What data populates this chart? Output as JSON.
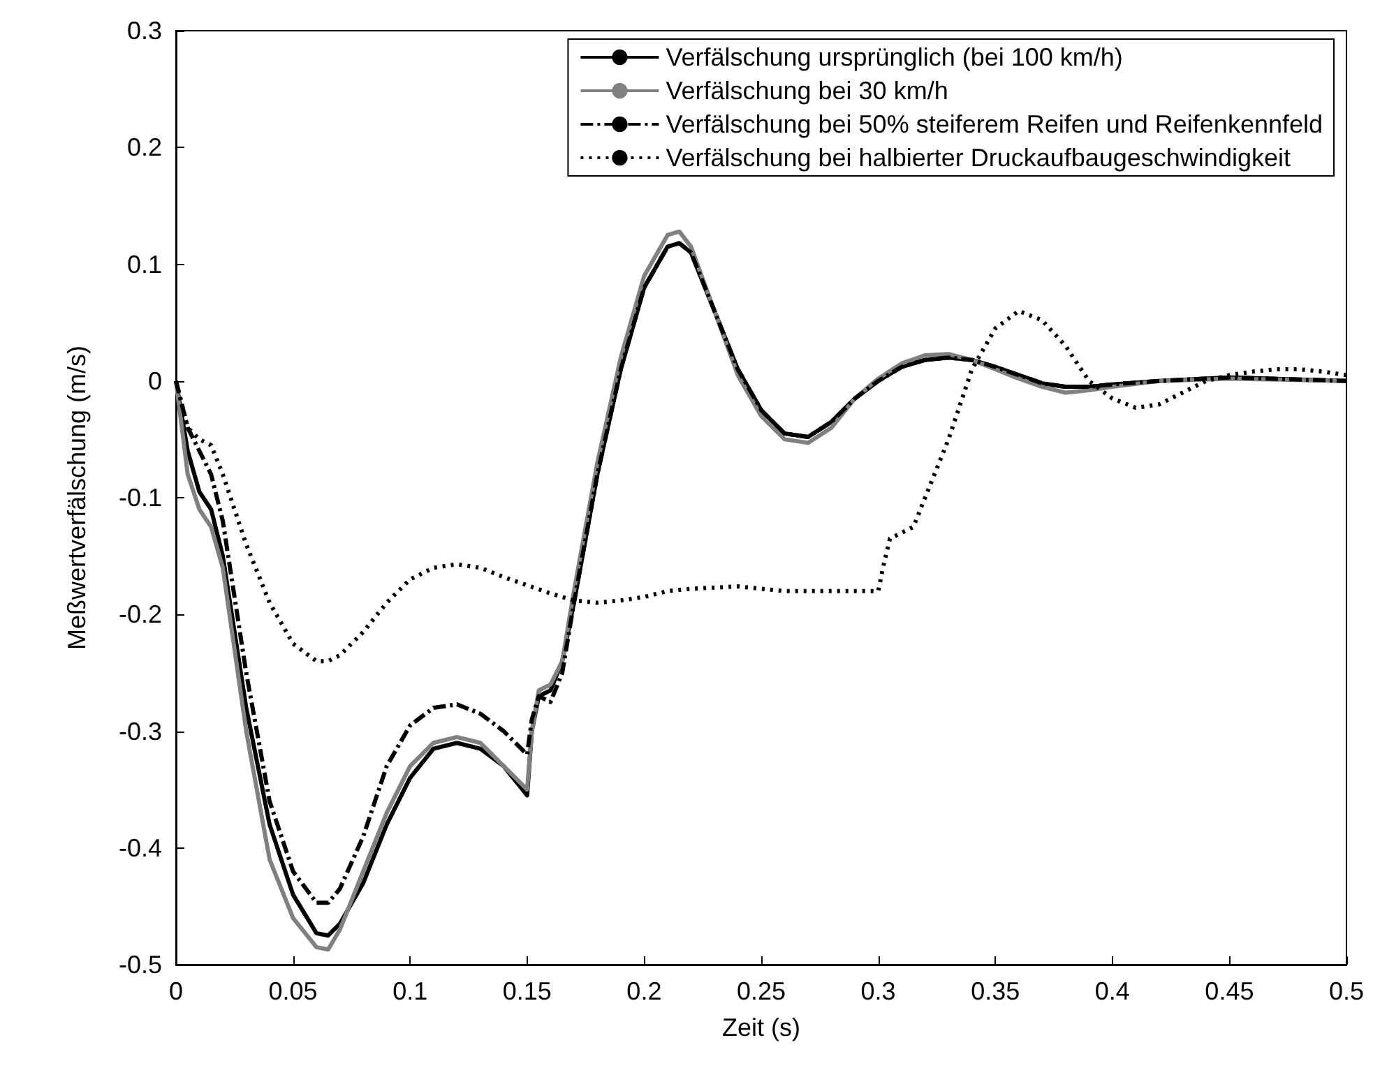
{
  "chart_data": {
    "type": "line",
    "xlabel": "Zeit (s)",
    "ylabel": "Meßwertverfälschung (m/s)",
    "xlim": [
      0,
      0.5
    ],
    "xticks": [
      0,
      0.05,
      0.1,
      0.15,
      0.2,
      0.25,
      0.3,
      0.35,
      0.4,
      0.45,
      0.5
    ],
    "ylim": [
      -0.5,
      0.3
    ],
    "yticks": [
      -0.5,
      -0.4,
      -0.3,
      -0.2,
      -0.1,
      0,
      0.1,
      0.2,
      0.3
    ],
    "grid": false,
    "legend": "top right",
    "marker": "none",
    "series": [
      {
        "name": "Verfälschung ursprünglich (bei 100 km/h)",
        "color": "#000000",
        "line_style": "solid",
        "x": [
          0,
          0.005,
          0.01,
          0.015,
          0.02,
          0.03,
          0.04,
          0.05,
          0.06,
          0.065,
          0.07,
          0.08,
          0.09,
          0.1,
          0.11,
          0.12,
          0.13,
          0.14,
          0.15,
          0.152,
          0.155,
          0.16,
          0.165,
          0.17,
          0.18,
          0.19,
          0.2,
          0.21,
          0.215,
          0.22,
          0.23,
          0.24,
          0.25,
          0.26,
          0.27,
          0.28,
          0.29,
          0.3,
          0.31,
          0.32,
          0.33,
          0.34,
          0.35,
          0.36,
          0.37,
          0.38,
          0.39,
          0.4,
          0.42,
          0.45,
          0.5
        ],
        "values": [
          0,
          -0.06,
          -0.095,
          -0.11,
          -0.15,
          -0.28,
          -0.38,
          -0.44,
          -0.473,
          -0.475,
          -0.465,
          -0.43,
          -0.38,
          -0.34,
          -0.315,
          -0.31,
          -0.315,
          -0.33,
          -0.355,
          -0.3,
          -0.27,
          -0.265,
          -0.24,
          -0.19,
          -0.08,
          0.01,
          0.08,
          0.115,
          0.118,
          0.11,
          0.06,
          0.01,
          -0.025,
          -0.045,
          -0.048,
          -0.035,
          -0.015,
          0,
          0.012,
          0.018,
          0.02,
          0.018,
          0.012,
          0.005,
          -0.002,
          -0.005,
          -0.005,
          -0.003,
          0,
          0.003,
          0
        ]
      },
      {
        "name": "Verfälschung bei 30 km/h",
        "color": "#808080",
        "line_style": "solid",
        "x": [
          0,
          0.005,
          0.01,
          0.015,
          0.02,
          0.03,
          0.04,
          0.05,
          0.06,
          0.065,
          0.07,
          0.08,
          0.09,
          0.1,
          0.11,
          0.12,
          0.13,
          0.14,
          0.15,
          0.152,
          0.155,
          0.16,
          0.165,
          0.17,
          0.18,
          0.19,
          0.2,
          0.21,
          0.215,
          0.22,
          0.23,
          0.24,
          0.25,
          0.26,
          0.27,
          0.28,
          0.29,
          0.3,
          0.31,
          0.32,
          0.33,
          0.34,
          0.35,
          0.36,
          0.37,
          0.38,
          0.39,
          0.4,
          0.42,
          0.45,
          0.5
        ],
        "values": [
          0,
          -0.08,
          -0.11,
          -0.125,
          -0.16,
          -0.3,
          -0.41,
          -0.46,
          -0.485,
          -0.487,
          -0.47,
          -0.42,
          -0.37,
          -0.33,
          -0.31,
          -0.305,
          -0.31,
          -0.33,
          -0.35,
          -0.3,
          -0.265,
          -0.26,
          -0.24,
          -0.18,
          -0.07,
          0.02,
          0.09,
          0.125,
          0.128,
          0.115,
          0.06,
          0.005,
          -0.03,
          -0.05,
          -0.053,
          -0.04,
          -0.015,
          0.002,
          0.015,
          0.022,
          0.023,
          0.018,
          0.01,
          0.002,
          -0.005,
          -0.01,
          -0.008,
          -0.005,
          0,
          0.002,
          0
        ]
      },
      {
        "name": "Verfälschung bei 50% steiferem Reifen und Reifenkennfeld",
        "color": "#000000",
        "line_style": "dashdot",
        "x": [
          0,
          0.005,
          0.01,
          0.015,
          0.02,
          0.03,
          0.04,
          0.05,
          0.06,
          0.065,
          0.07,
          0.08,
          0.09,
          0.1,
          0.11,
          0.12,
          0.13,
          0.14,
          0.15,
          0.152,
          0.155,
          0.16,
          0.165,
          0.17,
          0.18,
          0.19,
          0.2,
          0.21,
          0.215,
          0.22,
          0.23,
          0.24,
          0.25,
          0.26,
          0.27,
          0.28,
          0.29,
          0.3,
          0.31,
          0.32,
          0.33,
          0.34,
          0.35,
          0.36,
          0.37,
          0.38,
          0.39,
          0.4,
          0.42,
          0.45,
          0.5
        ],
        "values": [
          0,
          -0.04,
          -0.06,
          -0.08,
          -0.12,
          -0.25,
          -0.36,
          -0.42,
          -0.447,
          -0.447,
          -0.435,
          -0.39,
          -0.33,
          -0.295,
          -0.28,
          -0.277,
          -0.285,
          -0.3,
          -0.32,
          -0.29,
          -0.27,
          -0.275,
          -0.25,
          -0.19,
          -0.08,
          0.01,
          0.08,
          0.115,
          0.118,
          0.11,
          0.06,
          0.01,
          -0.025,
          -0.045,
          -0.048,
          -0.035,
          -0.015,
          0,
          0.012,
          0.018,
          0.02,
          0.018,
          0.012,
          0.005,
          -0.002,
          -0.005,
          -0.005,
          -0.003,
          0,
          0.003,
          0
        ]
      },
      {
        "name": "Verfälschung bei halbierter Druckaufbaugeschwindigkeit",
        "color": "#000000",
        "line_style": "dotted",
        "x": [
          0,
          0.005,
          0.01,
          0.015,
          0.02,
          0.03,
          0.04,
          0.05,
          0.06,
          0.065,
          0.07,
          0.08,
          0.09,
          0.1,
          0.11,
          0.12,
          0.13,
          0.14,
          0.15,
          0.16,
          0.17,
          0.18,
          0.19,
          0.2,
          0.21,
          0.22,
          0.24,
          0.26,
          0.28,
          0.3,
          0.302,
          0.305,
          0.31,
          0.315,
          0.32,
          0.33,
          0.34,
          0.35,
          0.36,
          0.37,
          0.38,
          0.39,
          0.4,
          0.41,
          0.42,
          0.43,
          0.44,
          0.45,
          0.46,
          0.47,
          0.48,
          0.49,
          0.5
        ],
        "values": [
          0,
          -0.04,
          -0.05,
          -0.055,
          -0.08,
          -0.14,
          -0.19,
          -0.225,
          -0.24,
          -0.24,
          -0.235,
          -0.215,
          -0.19,
          -0.17,
          -0.16,
          -0.157,
          -0.16,
          -0.168,
          -0.175,
          -0.182,
          -0.188,
          -0.19,
          -0.188,
          -0.185,
          -0.18,
          -0.178,
          -0.176,
          -0.18,
          -0.18,
          -0.18,
          -0.16,
          -0.135,
          -0.13,
          -0.125,
          -0.1,
          -0.05,
          0.01,
          0.045,
          0.06,
          0.052,
          0.03,
          0,
          -0.015,
          -0.023,
          -0.02,
          -0.01,
          0,
          0.005,
          0.008,
          0.01,
          0.01,
          0.008,
          0.005
        ]
      }
    ]
  }
}
